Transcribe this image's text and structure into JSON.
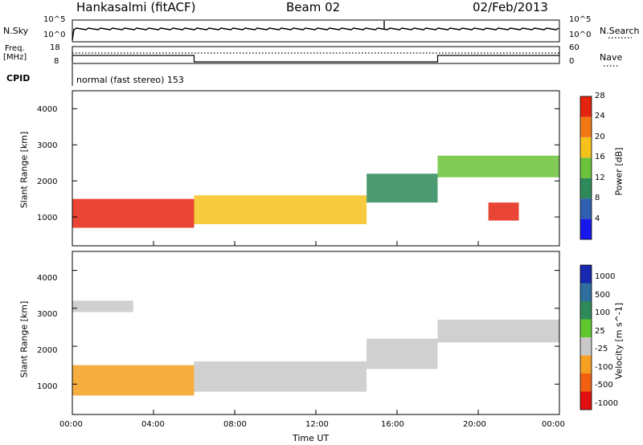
{
  "header": {
    "station": "Hankasalmi (fitACF)",
    "beam": "Beam 02",
    "date": "02/Feb/2013"
  },
  "noise_panel": {
    "left_label": "N.Sky",
    "right_label": "N.Search",
    "left_ticks": [
      "10^5",
      "10^0"
    ],
    "right_ticks": [
      "10^5",
      "10^0"
    ]
  },
  "freq_panel": {
    "left_label_line1": "Freq.",
    "left_label_line2": "[MHz]",
    "left_ticks": [
      "18",
      "8"
    ],
    "right_ticks": [
      "60",
      "0"
    ],
    "right_label": "Nave"
  },
  "cpid": {
    "label": "CPID",
    "program": "normal (fast stereo) 153"
  },
  "chart_data": [
    {
      "type": "heatmap",
      "name": "Power",
      "ylabel": "Slant Range [km]",
      "ylim": [
        200,
        4500
      ],
      "yticks": [
        "1000",
        "2000",
        "3000",
        "4000"
      ],
      "colorbar_label": "Power [dB]",
      "colorbar_ticks": [
        "4",
        "8",
        "12",
        "16",
        "20",
        "24",
        "28"
      ],
      "colorbar_colors": [
        "#1818ee",
        "#2f5fb0",
        "#2e8a5a",
        "#6cc23a",
        "#f5c21c",
        "#f07814",
        "#e52410"
      ],
      "echo_bands": [
        {
          "t_start": 0.0,
          "t_end": 6.0,
          "r_low": 700,
          "r_high": 1500,
          "level": 28
        },
        {
          "t_start": 6.0,
          "t_end": 14.5,
          "r_low": 800,
          "r_high": 1600,
          "level": 20
        },
        {
          "t_start": 14.5,
          "t_end": 18.0,
          "r_low": 1400,
          "r_high": 2200,
          "level": 12
        },
        {
          "t_start": 18.0,
          "t_end": 24.0,
          "r_low": 2100,
          "r_high": 2700,
          "level": 16
        },
        {
          "t_start": 20.5,
          "t_end": 22.0,
          "r_low": 900,
          "r_high": 1400,
          "level": 28
        }
      ]
    },
    {
      "type": "heatmap",
      "name": "Velocity",
      "ylabel": "Slant Range [km]",
      "ylim": [
        200,
        4500
      ],
      "yticks": [
        "1000",
        "2000",
        "3000",
        "4000"
      ],
      "colorbar_label": "Velocity [m s^-1]",
      "colorbar_ticks": [
        "1000",
        "500",
        "100",
        "25",
        "-25",
        "-100",
        "-500",
        "-1000"
      ],
      "colorbar_colors": [
        "#1828b0",
        "#2f6fa0",
        "#2e8a5a",
        "#5ec82e",
        "#c8c8c8",
        "#f5a020",
        "#f06010",
        "#e01010"
      ],
      "echo_bands": [
        {
          "t_start": 0.0,
          "t_end": 6.0,
          "r_low": 700,
          "r_high": 1500,
          "level": -100
        },
        {
          "t_start": 6.0,
          "t_end": 14.5,
          "r_low": 800,
          "r_high": 1600,
          "level": -25
        },
        {
          "t_start": 14.5,
          "t_end": 18.0,
          "r_low": 1400,
          "r_high": 2200,
          "level": -25
        },
        {
          "t_start": 18.0,
          "t_end": 24.0,
          "r_low": 2100,
          "r_high": 2700,
          "level": -25
        },
        {
          "t_start": 0.0,
          "t_end": 3.0,
          "r_low": 2900,
          "r_high": 3200,
          "level": -25
        }
      ]
    }
  ],
  "x_axis": {
    "ticks": [
      "00:00",
      "04:00",
      "08:00",
      "12:00",
      "16:00",
      "20:00",
      "00:00"
    ],
    "label": "Time UT"
  }
}
